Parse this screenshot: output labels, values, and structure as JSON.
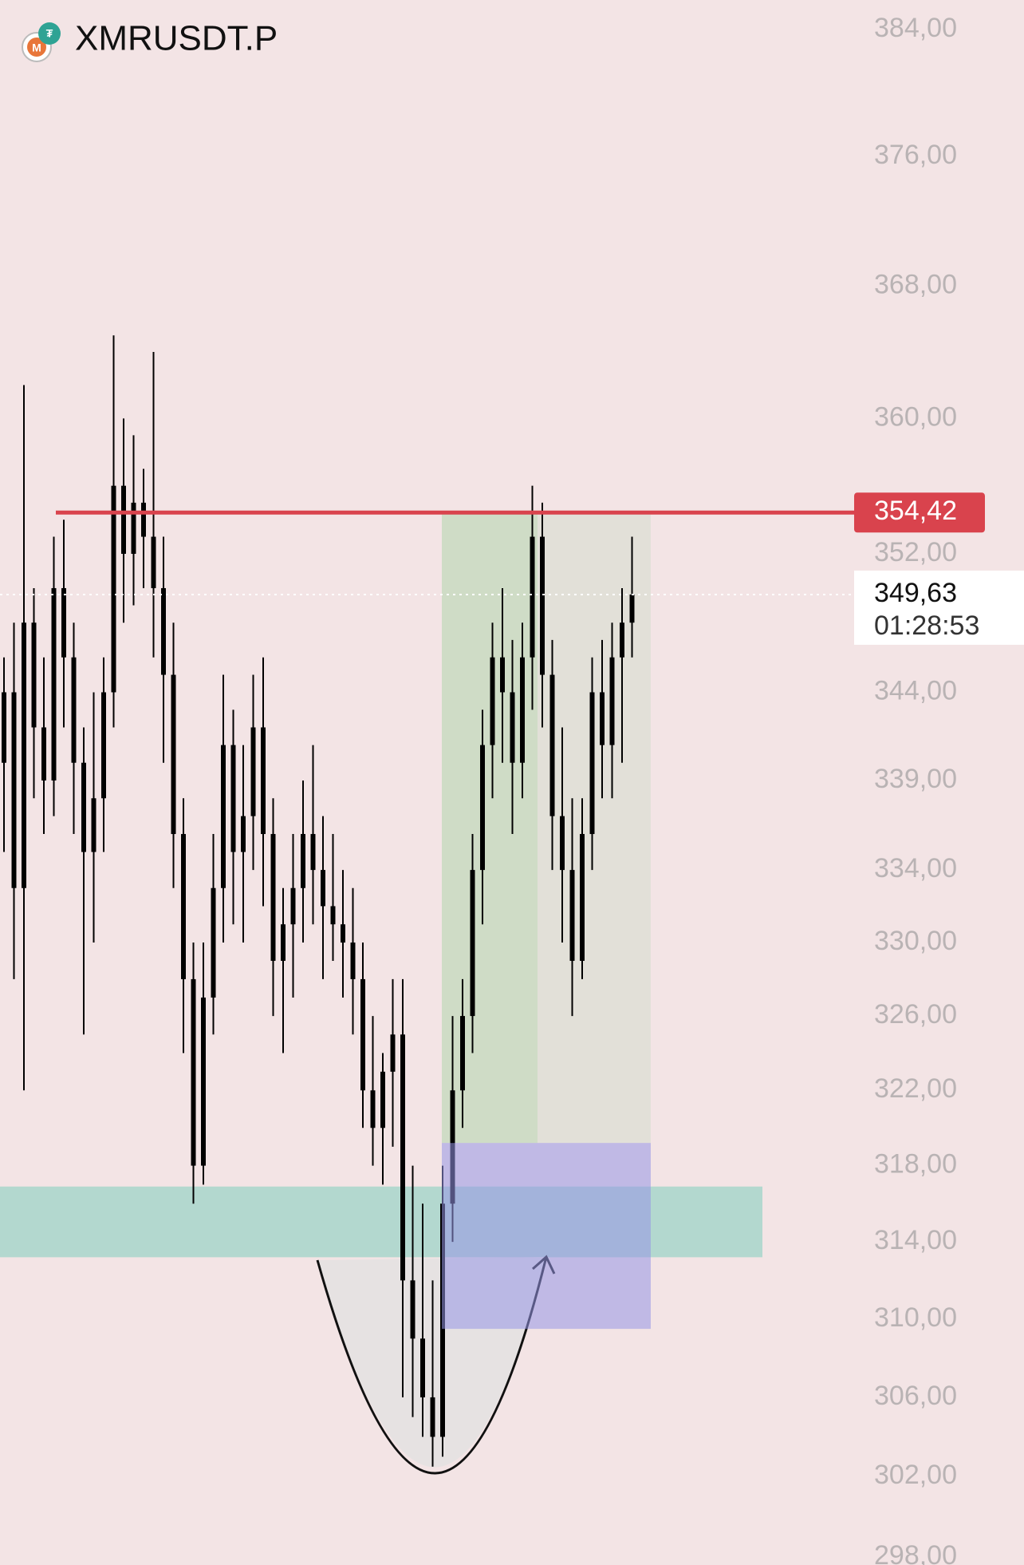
{
  "chart_data": {
    "type": "candlestick",
    "title": "XMRUSDT.P",
    "log": true,
    "color": "#000000",
    "ylim": [
      297.6,
      385.9
    ],
    "yticks": [
      {
        "value": 384,
        "label": "384,00"
      },
      {
        "value": 376,
        "label": "376,00"
      },
      {
        "value": 368,
        "label": "368,00"
      },
      {
        "value": 360,
        "label": "360,00"
      },
      {
        "value": 352,
        "label": "352,00"
      },
      {
        "value": 344,
        "label": "344,00"
      },
      {
        "value": 339,
        "label": "339,00"
      },
      {
        "value": 334,
        "label": "334,00"
      },
      {
        "value": 330,
        "label": "330,00"
      },
      {
        "value": 326,
        "label": "326,00"
      },
      {
        "value": 322,
        "label": "322,00"
      },
      {
        "value": 318,
        "label": "318,00"
      },
      {
        "value": 314,
        "label": "314,00"
      },
      {
        "value": 310,
        "label": "310,00"
      },
      {
        "value": 306,
        "label": "306,00"
      },
      {
        "value": 302,
        "label": "302,00"
      },
      {
        "value": 298,
        "label": "298,00"
      }
    ],
    "open": [
      340,
      344,
      333,
      348,
      342,
      339,
      350,
      346,
      340,
      335,
      338,
      344,
      356,
      352,
      355,
      353,
      350,
      345,
      336,
      328,
      318,
      327,
      333,
      341,
      335,
      337,
      342,
      336,
      329,
      331,
      333,
      336,
      334,
      332,
      331,
      330,
      328,
      322,
      320,
      323,
      325,
      312,
      309,
      306,
      304,
      316,
      322,
      326,
      334,
      341,
      346,
      344,
      340,
      346,
      353,
      345,
      337,
      334,
      329,
      336,
      344,
      341,
      346,
      348
    ],
    "high": [
      346,
      348,
      362,
      350,
      346,
      353,
      354,
      348,
      342,
      344,
      346,
      365,
      360,
      359,
      357,
      364,
      353,
      348,
      338,
      330,
      330,
      336,
      345,
      343,
      341,
      345,
      346,
      338,
      333,
      336,
      339,
      341,
      337,
      336,
      334,
      333,
      330,
      326,
      324,
      328,
      328,
      318,
      316,
      312,
      318,
      326,
      328,
      336,
      343,
      348,
      350,
      347,
      348,
      356,
      355,
      347,
      342,
      338,
      338,
      346,
      347,
      348,
      350,
      353
    ],
    "low": [
      335,
      328,
      322,
      338,
      336,
      337,
      342,
      336,
      325,
      330,
      335,
      342,
      348,
      349,
      350,
      346,
      340,
      333,
      324,
      316,
      317,
      325,
      330,
      331,
      330,
      334,
      332,
      326,
      324,
      327,
      330,
      331,
      328,
      329,
      327,
      325,
      320,
      318,
      317,
      319,
      306,
      305,
      304,
      302.5,
      303,
      314,
      320,
      324,
      331,
      338,
      340,
      336,
      338,
      343,
      342,
      334,
      330,
      326,
      328,
      334,
      338,
      338,
      340,
      346
    ],
    "close": [
      344,
      333,
      348,
      342,
      339,
      350,
      346,
      340,
      335,
      338,
      344,
      356,
      352,
      355,
      353,
      350,
      345,
      336,
      328,
      318,
      327,
      333,
      341,
      335,
      337,
      342,
      336,
      329,
      331,
      333,
      336,
      334,
      332,
      331,
      330,
      328,
      322,
      320,
      323,
      325,
      312,
      309,
      306,
      304,
      316,
      322,
      326,
      334,
      341,
      346,
      344,
      340,
      346,
      353,
      345,
      337,
      334,
      329,
      336,
      344,
      341,
      346,
      348,
      349.63
    ],
    "resistance": {
      "value": 354.42,
      "label": "354,42",
      "color": "#d9434d"
    },
    "last_price": {
      "value": 349.63,
      "label": "349,63",
      "countdown": "01:28:53"
    },
    "zone": {
      "from": 313.2,
      "to": 316.9,
      "color": "#b3d8cf"
    },
    "position": {
      "target": 354.42,
      "entry": 319.2,
      "stop": 309.5
    }
  }
}
